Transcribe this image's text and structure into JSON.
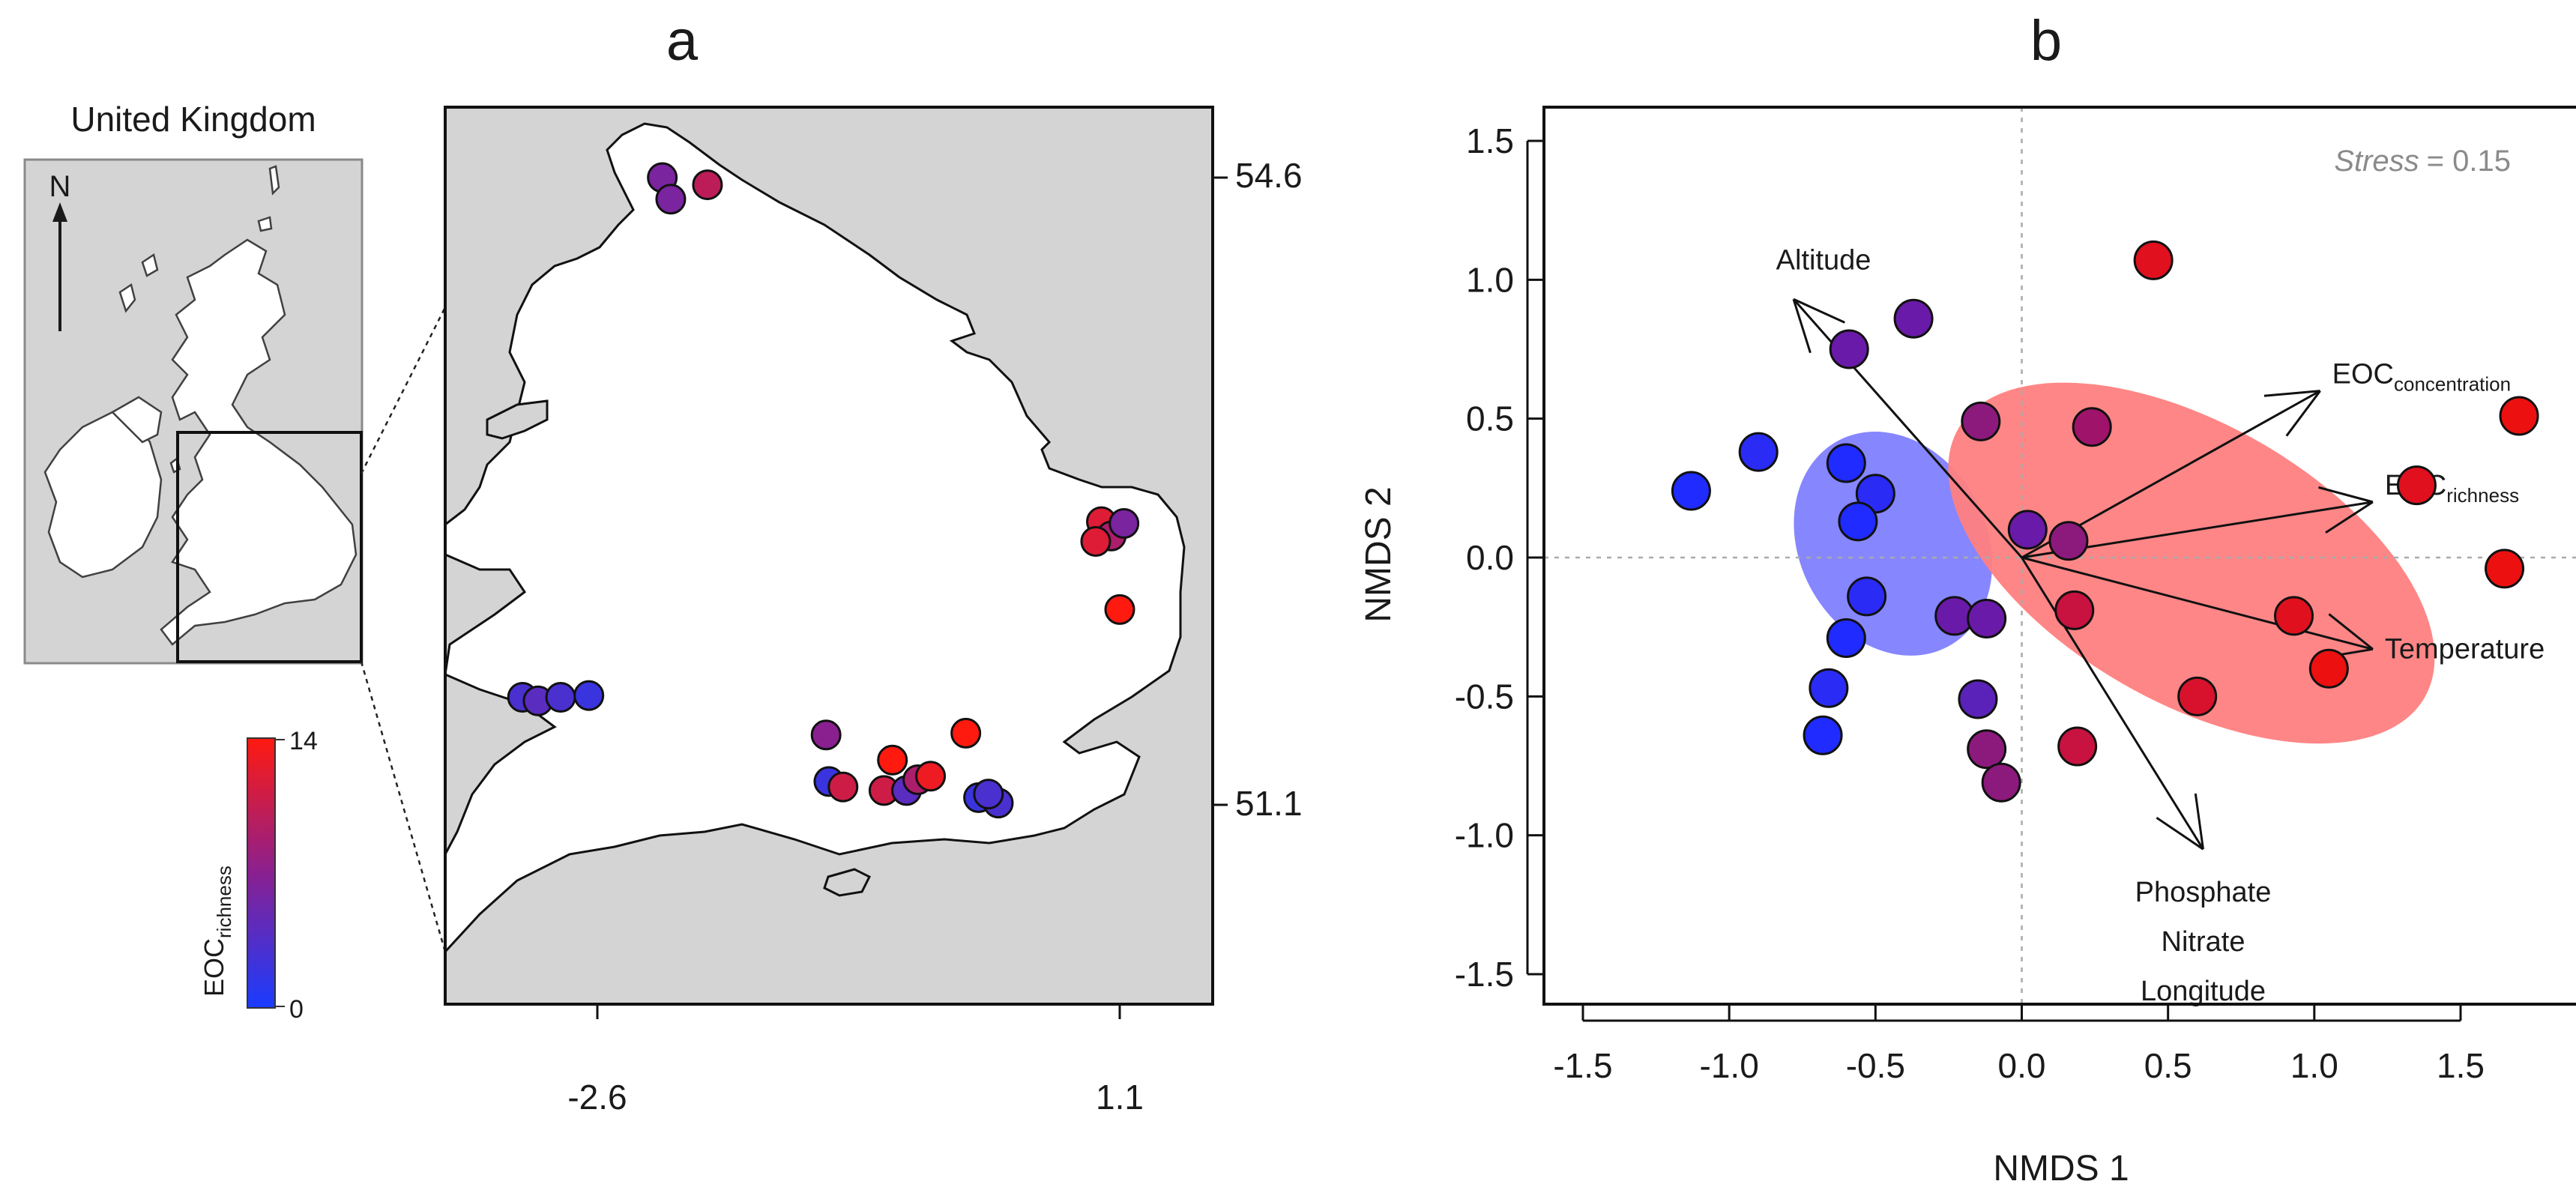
{
  "panel_a": {
    "label": "a",
    "inset_title": "United Kingdom",
    "north_label": "N",
    "lat_ticks": [
      "54.6",
      "51.1"
    ],
    "lon_ticks": [
      "-2.6",
      "1.1"
    ],
    "colorbar": {
      "label_main": "EOC",
      "label_sub": "richness",
      "max_label": "14",
      "min_label": "0",
      "low_color": "#1a3cff",
      "high_color": "#ff1a10"
    }
  },
  "panel_b": {
    "label": "b",
    "stress_label": "Stress",
    "stress_value": "= 0.15"
  },
  "chart_data": [
    {
      "type": "scatter",
      "subtype": "map",
      "x_axis": "longitude",
      "y_axis": "latitude",
      "x_ticks": [
        -2.6,
        1.1
      ],
      "y_ticks": [
        54.6,
        51.1
      ],
      "color_scale": {
        "label": "EOC richness",
        "min": 0,
        "max": 14,
        "low_color": "#1a3cff",
        "high_color": "#ff1a10"
      },
      "points": [
        {
          "lon": -2.14,
          "lat": 54.6,
          "richness": 6
        },
        {
          "lon": -2.08,
          "lat": 54.48,
          "richness": 6
        },
        {
          "lon": -1.82,
          "lat": 54.56,
          "richness": 10
        },
        {
          "lon": 0.97,
          "lat": 52.68,
          "richness": 12
        },
        {
          "lon": 1.04,
          "lat": 52.6,
          "richness": 9
        },
        {
          "lon": 1.13,
          "lat": 52.67,
          "richness": 6
        },
        {
          "lon": 0.93,
          "lat": 52.57,
          "richness": 12
        },
        {
          "lon": 1.1,
          "lat": 52.19,
          "richness": 14
        },
        {
          "lon": -3.13,
          "lat": 51.7,
          "richness": 3
        },
        {
          "lon": -3.02,
          "lat": 51.68,
          "richness": 4
        },
        {
          "lon": -2.86,
          "lat": 51.7,
          "richness": 3
        },
        {
          "lon": -2.66,
          "lat": 51.71,
          "richness": 2
        },
        {
          "lon": -0.98,
          "lat": 51.49,
          "richness": 7
        },
        {
          "lon": -0.96,
          "lat": 51.23,
          "richness": 2
        },
        {
          "lon": -0.86,
          "lat": 51.2,
          "richness": 11
        },
        {
          "lon": -0.51,
          "lat": 51.35,
          "richness": 14
        },
        {
          "lon": -0.57,
          "lat": 51.18,
          "richness": 11
        },
        {
          "lon": -0.41,
          "lat": 51.18,
          "richness": 4
        },
        {
          "lon": -0.33,
          "lat": 51.24,
          "richness": 9
        },
        {
          "lon": -0.24,
          "lat": 51.26,
          "richness": 13
        },
        {
          "lon": 0.01,
          "lat": 51.5,
          "richness": 14
        },
        {
          "lon": 0.1,
          "lat": 51.14,
          "richness": 2
        },
        {
          "lon": 0.24,
          "lat": 51.11,
          "richness": 3
        },
        {
          "lon": 0.17,
          "lat": 51.16,
          "richness": 3
        }
      ]
    },
    {
      "type": "scatter",
      "subtype": "ordination",
      "xlabel": "NMDS 1",
      "ylabel": "NMDS 2",
      "xlim": [
        -1.5,
        1.8
      ],
      "ylim": [
        -1.5,
        1.6
      ],
      "xticks": [
        -1.5,
        -1.0,
        -0.5,
        0.0,
        0.5,
        1.0,
        1.5
      ],
      "yticks": [
        -1.5,
        -1.0,
        -0.5,
        0.0,
        0.5,
        1.0,
        1.5
      ],
      "reference_lines": {
        "x": 0,
        "y": 0,
        "style": "dotted"
      },
      "points": [
        {
          "x": -1.13,
          "y": 0.24,
          "color": "#1f2bff"
        },
        {
          "x": -0.9,
          "y": 0.38,
          "color": "#2a2bf5"
        },
        {
          "x": -0.6,
          "y": 0.34,
          "color": "#1f2bff"
        },
        {
          "x": -0.5,
          "y": 0.23,
          "color": "#2a2bf5"
        },
        {
          "x": -0.56,
          "y": 0.13,
          "color": "#1f2bff"
        },
        {
          "x": -0.53,
          "y": -0.14,
          "color": "#2a2bf5"
        },
        {
          "x": -0.6,
          "y": -0.29,
          "color": "#1f2bff"
        },
        {
          "x": -0.66,
          "y": -0.47,
          "color": "#2a2bf5"
        },
        {
          "x": -0.68,
          "y": -0.64,
          "color": "#1f2bff"
        },
        {
          "x": -0.59,
          "y": 0.75,
          "color": "#6a1aa8"
        },
        {
          "x": -0.37,
          "y": 0.86,
          "color": "#6a1aa8"
        },
        {
          "x": -0.14,
          "y": 0.49,
          "color": "#8c1a7c"
        },
        {
          "x": 0.24,
          "y": 0.47,
          "color": "#a0136a"
        },
        {
          "x": -0.23,
          "y": -0.21,
          "color": "#6a1aa8"
        },
        {
          "x": -0.12,
          "y": -0.22,
          "color": "#6a1aa8"
        },
        {
          "x": -0.15,
          "y": -0.51,
          "color": "#5a22b8"
        },
        {
          "x": -0.12,
          "y": -0.69,
          "color": "#8c1a7c"
        },
        {
          "x": -0.07,
          "y": -0.81,
          "color": "#8c1a7c"
        },
        {
          "x": 0.02,
          "y": 0.1,
          "color": "#6a1aa8"
        },
        {
          "x": 0.16,
          "y": 0.06,
          "color": "#8c1a7c"
        },
        {
          "x": 0.18,
          "y": -0.19,
          "color": "#c8123f"
        },
        {
          "x": 0.19,
          "y": -0.68,
          "color": "#c8123f"
        },
        {
          "x": 0.45,
          "y": 1.07,
          "color": "#e0101f"
        },
        {
          "x": 0.6,
          "y": -0.5,
          "color": "#d8122c"
        },
        {
          "x": 0.93,
          "y": -0.21,
          "color": "#e0101f"
        },
        {
          "x": 1.05,
          "y": -0.4,
          "color": "#ec1010"
        },
        {
          "x": 1.35,
          "y": 0.26,
          "color": "#e0101f"
        },
        {
          "x": 1.65,
          "y": -0.04,
          "color": "#ec1010"
        },
        {
          "x": 1.7,
          "y": 0.51,
          "color": "#ec1010"
        }
      ],
      "ellipses": [
        {
          "group": "low richness",
          "cx": -0.44,
          "cy": 0.05,
          "rx": 0.32,
          "ry": 0.42,
          "angle_deg": -28,
          "color": "#8080ff"
        },
        {
          "group": "high richness",
          "cx": 0.58,
          "cy": -0.02,
          "rx": 0.92,
          "ry": 0.5,
          "angle_deg": 30,
          "color": "#ff8080"
        }
      ],
      "vectors": [
        {
          "label": "Altitude",
          "x": -0.78,
          "y": 0.93
        },
        {
          "label": "EOC",
          "label_sub": "concentration",
          "x": 1.02,
          "y": 0.6
        },
        {
          "label": "EOC",
          "label_sub": "richness",
          "x": 1.2,
          "y": 0.2
        },
        {
          "label": "Temperature",
          "x": 1.2,
          "y": -0.33
        },
        {
          "label": "Phosphate",
          "x": 0.62,
          "y": -1.05
        },
        {
          "label": "Nitrate",
          "x": 0.62,
          "y": -1.05
        },
        {
          "label": "Longitude",
          "x": 0.62,
          "y": -1.05
        }
      ],
      "stress": 0.15
    }
  ]
}
